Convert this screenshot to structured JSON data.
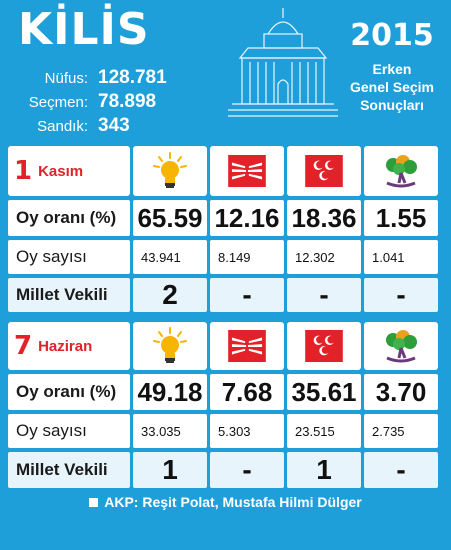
{
  "header": {
    "city": "KİLİS",
    "stats": [
      {
        "label": "Nüfus:",
        "value": "128.781"
      },
      {
        "label": "Seçmen:",
        "value": "78.898"
      },
      {
        "label": "Sandık:",
        "value": "343"
      }
    ],
    "year": "2015",
    "subtitle": [
      "Erken",
      "Genel Seçim",
      "Sonuçları"
    ]
  },
  "colors": {
    "background": "#1f9fd9",
    "date_red": "#e32128",
    "akp_yellow": "#f7b500",
    "chp_red": "#e32128",
    "mhp_red": "#e32128",
    "hdp_green": "#2e9e3a"
  },
  "parties": [
    {
      "icon": "akp-bulb-icon"
    },
    {
      "icon": "chp-six-arrows-icon"
    },
    {
      "icon": "mhp-three-crescents-icon"
    },
    {
      "icon": "hdp-tree-icon"
    }
  ],
  "elections": [
    {
      "date_num": "1",
      "date_month": "Kasım",
      "rows": {
        "share_label": "Oy oranı (%)",
        "share": [
          "65.59",
          "12.16",
          "18.36",
          "1.55"
        ],
        "votes_label": "Oy sayısı",
        "votes": [
          "43.941",
          "8.149",
          "12.302",
          "1.041"
        ],
        "mp_label": "Millet Vekili",
        "mps": [
          "2",
          "-",
          "-",
          "-"
        ]
      }
    },
    {
      "date_num": "7",
      "date_month": "Haziran",
      "rows": {
        "share_label": "Oy oranı (%)",
        "share": [
          "49.18",
          "7.68",
          "35.61",
          "3.70"
        ],
        "votes_label": "Oy sayısı",
        "votes": [
          "33.035",
          "5.303",
          "23.515",
          "2.735"
        ],
        "mp_label": "Millet Vekili",
        "mps": [
          "1",
          "-",
          "1",
          "-"
        ]
      }
    }
  ],
  "footnote": "AKP: Reşit Polat, Mustafa Hilmi Dülger"
}
